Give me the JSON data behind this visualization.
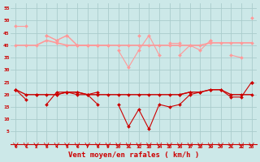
{
  "x": [
    0,
    1,
    2,
    3,
    4,
    5,
    6,
    7,
    8,
    9,
    10,
    11,
    12,
    13,
    14,
    15,
    16,
    17,
    18,
    19,
    20,
    21,
    22,
    23
  ],
  "rafales_max": [
    48,
    48,
    null,
    44,
    42,
    44,
    40,
    40,
    40,
    40,
    null,
    null,
    44,
    null,
    null,
    41,
    41,
    null,
    null,
    42,
    null,
    null,
    null,
    51
  ],
  "rafales_mean": [
    40,
    40,
    40,
    42,
    41,
    40,
    40,
    40,
    40,
    40,
    40,
    40,
    40,
    40,
    40,
    40,
    40,
    40,
    40,
    41,
    41,
    41,
    41,
    41
  ],
  "rafales_var": [
    null,
    null,
    null,
    44,
    42,
    44,
    40,
    40,
    40,
    null,
    38,
    31,
    38,
    44,
    36,
    null,
    36,
    40,
    38,
    42,
    null,
    36,
    35,
    null
  ],
  "vent_min": [
    22,
    18,
    null,
    16,
    21,
    21,
    20,
    20,
    16,
    null,
    16,
    7,
    14,
    6,
    16,
    15,
    16,
    20,
    21,
    22,
    22,
    19,
    19,
    25
  ],
  "vent_trend": [
    22,
    null,
    null,
    null,
    null,
    null,
    null,
    null,
    null,
    null,
    null,
    null,
    null,
    null,
    null,
    null,
    null,
    null,
    null,
    null,
    null,
    null,
    null,
    25
  ],
  "vent_mean": [
    22,
    20,
    20,
    20,
    20,
    21,
    21,
    20,
    20,
    20,
    20,
    20,
    20,
    20,
    20,
    20,
    20,
    21,
    21,
    22,
    22,
    20,
    20,
    20
  ],
  "vent_var": [
    22,
    null,
    20,
    null,
    20,
    21,
    21,
    20,
    21,
    null,
    null,
    null,
    null,
    null,
    null,
    null,
    20,
    21,
    null,
    null,
    null,
    null,
    null,
    null
  ],
  "bg_color": "#cce8e8",
  "grid_color": "#aacccc",
  "lc": "#ff9999",
  "dc": "#cc0000",
  "xlabel": "Vent moyen/en rafales ( km/h )",
  "ylim": [
    0,
    57
  ],
  "yticks": [
    5,
    10,
    15,
    20,
    25,
    30,
    35,
    40,
    45,
    50,
    55
  ],
  "xticks": [
    0,
    1,
    2,
    3,
    4,
    5,
    6,
    7,
    8,
    9,
    10,
    11,
    12,
    13,
    14,
    15,
    16,
    17,
    18,
    19,
    20,
    21,
    22,
    23
  ]
}
